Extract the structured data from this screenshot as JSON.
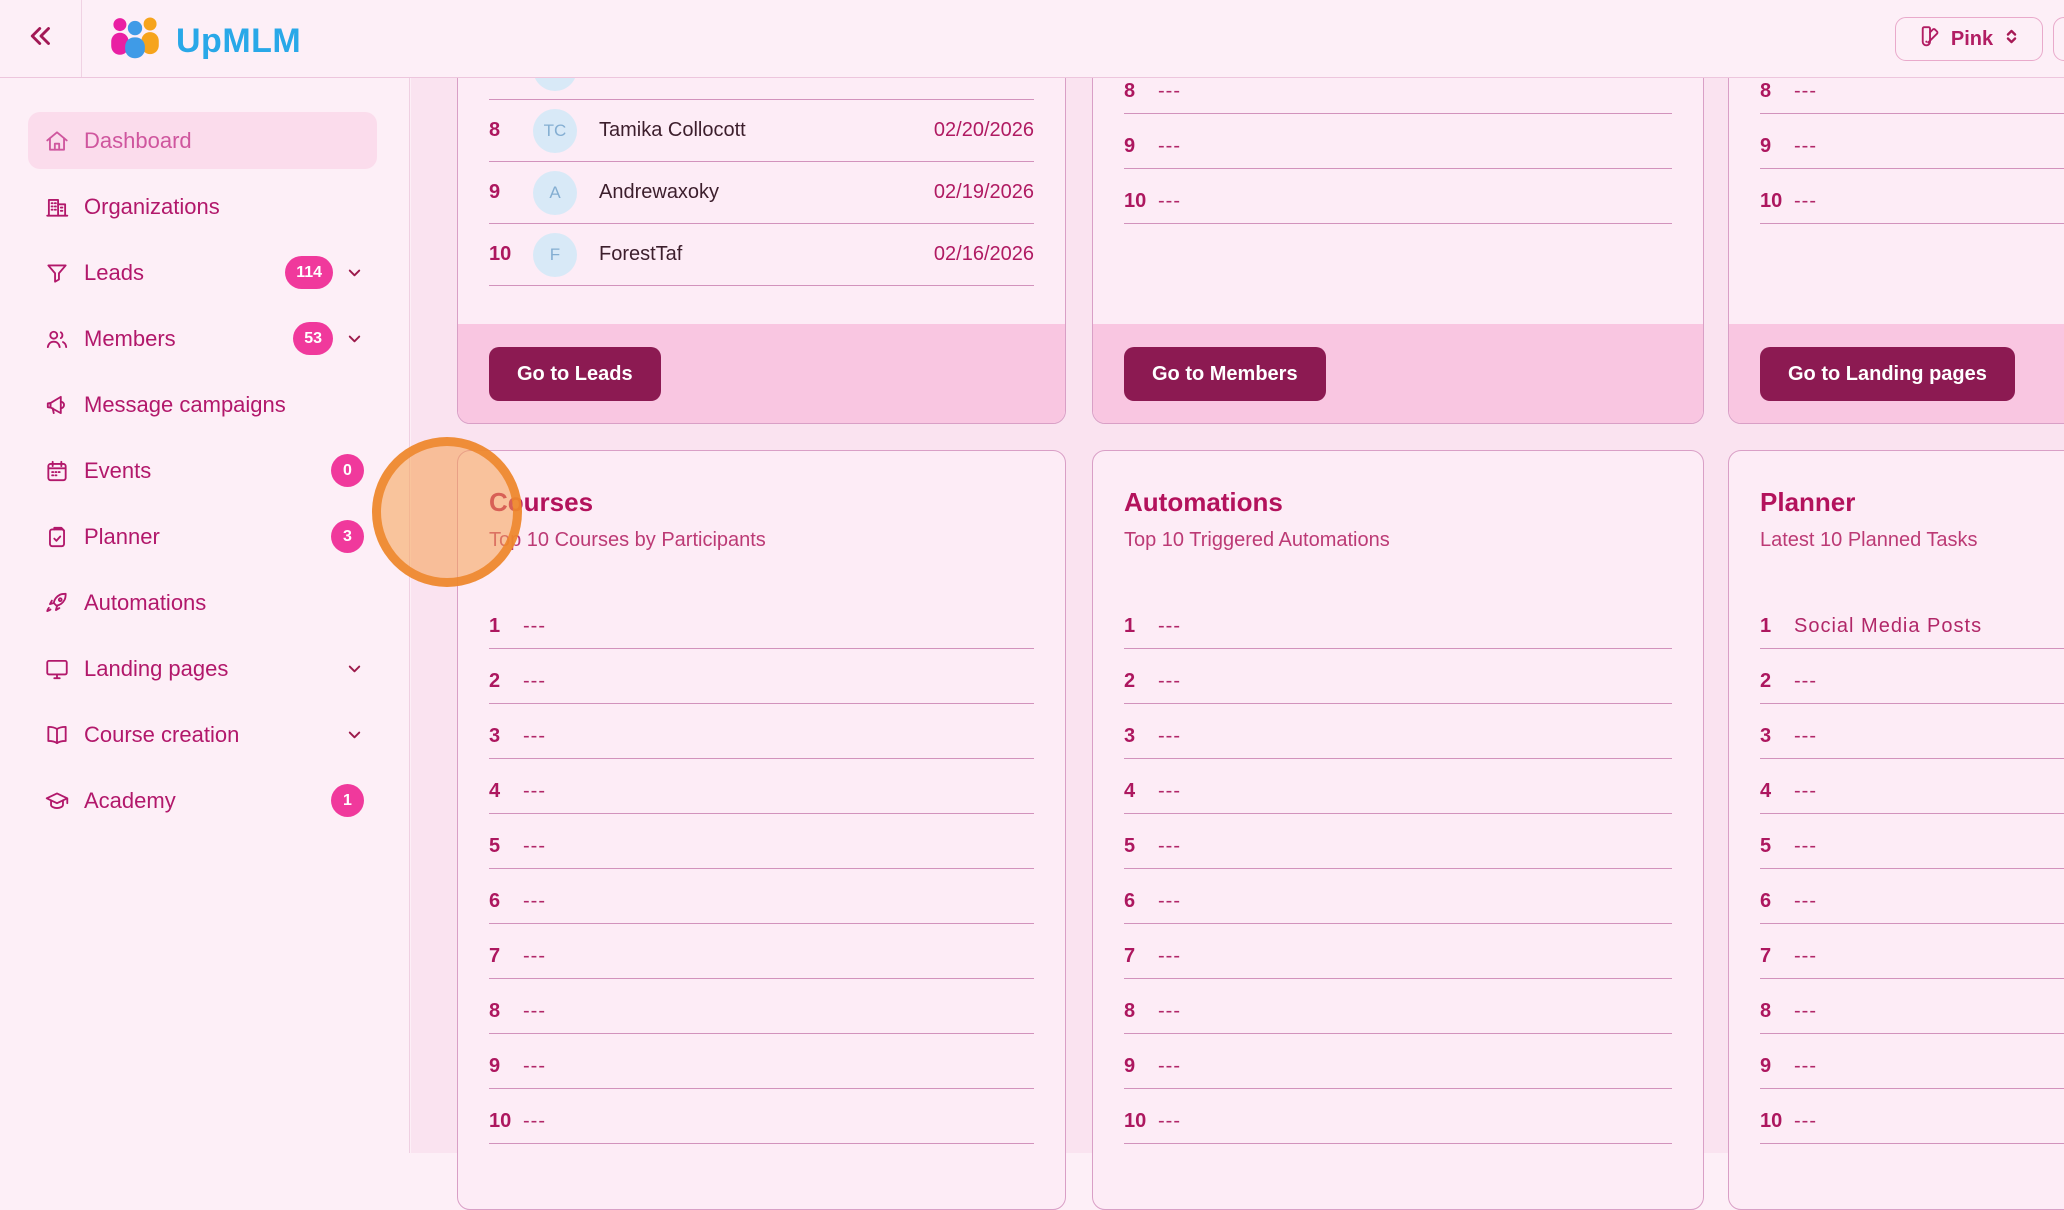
{
  "header": {
    "app_name": "UpMLM",
    "theme_button": {
      "label": "Pink"
    },
    "icons": {
      "collapse": "double-chevron-left",
      "theme": "swatch-book",
      "theme_select": "up-down-chevrons"
    }
  },
  "sidebar": {
    "items": [
      {
        "label": "Dashboard",
        "icon": "home-icon",
        "active": true
      },
      {
        "label": "Organizations",
        "icon": "building-icon"
      },
      {
        "label": "Leads",
        "icon": "funnel-icon",
        "badge": "114",
        "chevron": true
      },
      {
        "label": "Members",
        "icon": "users-icon",
        "badge": "53",
        "chevron": true
      },
      {
        "label": "Message campaigns",
        "icon": "megaphone-icon"
      },
      {
        "label": "Events",
        "icon": "calendar-icon",
        "badge": "0"
      },
      {
        "label": "Planner",
        "icon": "clipboard-icon",
        "badge": "3"
      },
      {
        "label": "Automations",
        "icon": "rocket-icon"
      },
      {
        "label": "Landing pages",
        "icon": "monitor-icon",
        "chevron": true
      },
      {
        "label": "Course creation",
        "icon": "book-icon",
        "chevron": true
      },
      {
        "label": "Academy",
        "icon": "graduation-cap-icon",
        "badge": "1"
      }
    ]
  },
  "cards": {
    "leads": {
      "button": "Go to Leads",
      "rows": [
        {
          "num": "",
          "initials": "",
          "name": "",
          "date": "",
          "partial": true
        },
        {
          "num": "8",
          "initials": "TC",
          "name": "Tamika Collocott",
          "date": "02/20/2026"
        },
        {
          "num": "9",
          "initials": "A",
          "name": "Andrewaxoky",
          "date": "02/19/2026"
        },
        {
          "num": "10",
          "initials": "F",
          "name": "ForestTaf",
          "date": "02/16/2026"
        }
      ]
    },
    "members": {
      "button": "Go to Members",
      "rows": [
        {
          "num": "8",
          "value": "---"
        },
        {
          "num": "9",
          "value": "---"
        },
        {
          "num": "10",
          "value": "---"
        }
      ]
    },
    "landing": {
      "button": "Go to Landing pages",
      "rows": [
        {
          "num": "8",
          "value": "---"
        },
        {
          "num": "9",
          "value": "---"
        },
        {
          "num": "10",
          "value": "---"
        }
      ]
    },
    "courses": {
      "title": "Courses",
      "subtitle": "Top 10 Courses by Participants",
      "rows": [
        {
          "num": "1",
          "value": "---"
        },
        {
          "num": "2",
          "value": "---"
        },
        {
          "num": "3",
          "value": "---"
        },
        {
          "num": "4",
          "value": "---"
        },
        {
          "num": "5",
          "value": "---"
        },
        {
          "num": "6",
          "value": "---"
        },
        {
          "num": "7",
          "value": "---"
        },
        {
          "num": "8",
          "value": "---"
        },
        {
          "num": "9",
          "value": "---"
        },
        {
          "num": "10",
          "value": "---"
        }
      ]
    },
    "automations": {
      "title": "Automations",
      "subtitle": "Top 10 Triggered Automations",
      "rows": [
        {
          "num": "1",
          "value": "---"
        },
        {
          "num": "2",
          "value": "---"
        },
        {
          "num": "3",
          "value": "---"
        },
        {
          "num": "4",
          "value": "---"
        },
        {
          "num": "5",
          "value": "---"
        },
        {
          "num": "6",
          "value": "---"
        },
        {
          "num": "7",
          "value": "---"
        },
        {
          "num": "8",
          "value": "---"
        },
        {
          "num": "9",
          "value": "---"
        },
        {
          "num": "10",
          "value": "---"
        }
      ]
    },
    "planner": {
      "title": "Planner",
      "subtitle": "Latest 10 Planned Tasks",
      "rows": [
        {
          "num": "1",
          "value": "Social Media Posts"
        },
        {
          "num": "2",
          "value": "---"
        },
        {
          "num": "3",
          "value": "---"
        },
        {
          "num": "4",
          "value": "---"
        },
        {
          "num": "5",
          "value": "---"
        },
        {
          "num": "6",
          "value": "---"
        },
        {
          "num": "7",
          "value": "---"
        },
        {
          "num": "8",
          "value": "---"
        },
        {
          "num": "9",
          "value": "---"
        },
        {
          "num": "10",
          "value": "---"
        }
      ]
    }
  },
  "colors": {
    "accent_pink": "#f0399c",
    "title_magenta": "#b3125c",
    "button_maroon": "#8c1a52",
    "footer_pink": "#f9c6e1",
    "logo_blue": "#29a8e8",
    "highlight_orange": "#ee852a"
  }
}
